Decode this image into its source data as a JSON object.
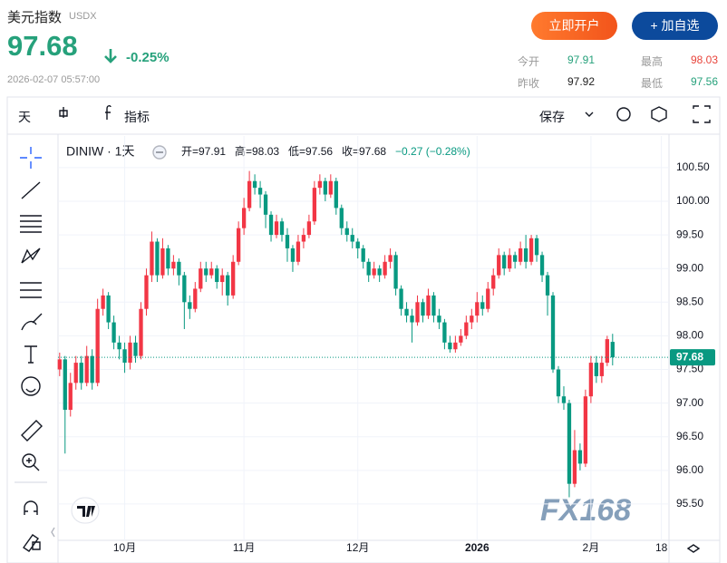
{
  "header": {
    "title": "美元指数",
    "code": "USDX",
    "price": "97.68",
    "change": "-0.25%",
    "time": "2026-02-07 05:57:00"
  },
  "buttons": {
    "open_account": "立即开户",
    "add_watch": "+ 加自选"
  },
  "stats": [
    {
      "label": "今开",
      "value": "97.91",
      "color": "#26a17b"
    },
    {
      "label": "最高",
      "value": "98.03",
      "color": "#e8443b"
    },
    {
      "label": "昨收",
      "value": "97.92",
      "color": "#222"
    },
    {
      "label": "最低",
      "value": "97.56",
      "color": "#26a17b"
    }
  ],
  "toolbar": {
    "interval": "天",
    "indicators": "指标",
    "save": "保存"
  },
  "chart_data": {
    "type": "candlestick",
    "symbol": "DINIW · 1天",
    "legend": {
      "open": "开=97.91",
      "high": "高=98.03",
      "low": "低=97.56",
      "close": "收=97.68",
      "change": "−0.27 (−0.28%)"
    },
    "up_color": "#f23645",
    "down_color": "#089981",
    "grid": true,
    "last_price": 97.68,
    "watermark": "FX168",
    "ylim": [
      94.96,
      100.97
    ],
    "yticks": [
      {
        "value": 100.5,
        "label": "100.50"
      },
      {
        "value": 100,
        "label": "100.00"
      },
      {
        "value": 99.5,
        "label": "99.50"
      },
      {
        "value": 99,
        "label": "99.00"
      },
      {
        "value": 98.5,
        "label": "98.50"
      },
      {
        "value": 98,
        "label": "98.00"
      },
      {
        "value": 97.5,
        "label": "97.50"
      },
      {
        "value": 97,
        "label": "97.00"
      },
      {
        "value": 96.5,
        "label": "96.50"
      },
      {
        "value": 96,
        "label": "96.00"
      },
      {
        "value": 95.5,
        "label": "95.50"
      }
    ],
    "xlim": [
      -0.3,
      112.4
    ],
    "xticks": [
      {
        "value": 12,
        "label": "10月"
      },
      {
        "value": 34,
        "label": "11月"
      },
      {
        "value": 55,
        "label": "12月"
      },
      {
        "value": 77,
        "label": "2026"
      },
      {
        "value": 98,
        "label": "2月"
      },
      {
        "value": 111,
        "label": "18"
      }
    ],
    "candles": [
      [
        97.5,
        97.75,
        97.4,
        97.65
      ],
      [
        97.65,
        97.7,
        96.25,
        96.9
      ],
      [
        96.9,
        97.45,
        96.8,
        97.3
      ],
      [
        97.3,
        97.7,
        97.2,
        97.6
      ],
      [
        97.6,
        97.7,
        97.2,
        97.3
      ],
      [
        97.3,
        97.85,
        97.25,
        97.7
      ],
      [
        97.7,
        97.8,
        97.2,
        97.3
      ],
      [
        97.3,
        98.55,
        97.25,
        98.4
      ],
      [
        98.4,
        98.7,
        98.3,
        98.6
      ],
      [
        98.6,
        98.65,
        98.1,
        98.2
      ],
      [
        98.2,
        98.3,
        97.8,
        97.9
      ],
      [
        97.9,
        98.0,
        97.65,
        97.8
      ],
      [
        97.8,
        97.9,
        97.45,
        97.6
      ],
      [
        97.6,
        98.0,
        97.5,
        97.9
      ],
      [
        97.9,
        98.0,
        97.6,
        97.7
      ],
      [
        97.7,
        98.5,
        97.65,
        98.4
      ],
      [
        98.4,
        99.0,
        98.3,
        98.9
      ],
      [
        98.9,
        99.55,
        98.8,
        99.4
      ],
      [
        99.4,
        99.45,
        98.8,
        98.9
      ],
      [
        98.9,
        99.45,
        98.85,
        99.3
      ],
      [
        99.3,
        99.35,
        98.9,
        99.0
      ],
      [
        99.0,
        99.2,
        98.9,
        99.1
      ],
      [
        99.1,
        99.15,
        98.75,
        98.9
      ],
      [
        98.9,
        98.95,
        98.1,
        98.5
      ],
      [
        98.5,
        98.6,
        98.25,
        98.4
      ],
      [
        98.4,
        98.8,
        98.35,
        98.7
      ],
      [
        98.7,
        99.1,
        98.65,
        99.0
      ],
      [
        99.0,
        99.1,
        98.8,
        98.9
      ],
      [
        98.9,
        99.1,
        98.85,
        99.0
      ],
      [
        99.0,
        99.05,
        98.7,
        98.8
      ],
      [
        98.8,
        99.0,
        98.6,
        98.9
      ],
      [
        98.9,
        98.95,
        98.45,
        98.6
      ],
      [
        98.6,
        99.2,
        98.55,
        99.1
      ],
      [
        99.1,
        99.7,
        99.05,
        99.6
      ],
      [
        99.6,
        100.05,
        99.5,
        99.9
      ],
      [
        99.9,
        100.45,
        99.85,
        100.3
      ],
      [
        100.3,
        100.4,
        100.1,
        100.2
      ],
      [
        100.2,
        100.3,
        99.9,
        100.1
      ],
      [
        100.1,
        100.15,
        99.6,
        99.8
      ],
      [
        99.8,
        99.85,
        99.4,
        99.5
      ],
      [
        99.5,
        99.8,
        99.45,
        99.7
      ],
      [
        99.7,
        99.75,
        99.4,
        99.5
      ],
      [
        99.5,
        99.6,
        99.1,
        99.3
      ],
      [
        99.3,
        99.35,
        98.95,
        99.1
      ],
      [
        99.1,
        99.5,
        99.05,
        99.4
      ],
      [
        99.4,
        99.6,
        99.3,
        99.5
      ],
      [
        99.5,
        99.8,
        99.45,
        99.7
      ],
      [
        99.7,
        100.3,
        99.65,
        100.2
      ],
      [
        100.2,
        100.4,
        100.1,
        100.3
      ],
      [
        100.3,
        100.35,
        100.0,
        100.1
      ],
      [
        100.1,
        100.4,
        100.05,
        100.3
      ],
      [
        100.3,
        100.35,
        99.8,
        99.9
      ],
      [
        99.9,
        99.95,
        99.5,
        99.6
      ],
      [
        99.6,
        99.7,
        99.4,
        99.5
      ],
      [
        99.5,
        99.6,
        99.3,
        99.4
      ],
      [
        99.4,
        99.45,
        99.15,
        99.3
      ],
      [
        99.3,
        99.35,
        99.0,
        99.1
      ],
      [
        99.1,
        99.15,
        98.8,
        98.9
      ],
      [
        98.9,
        99.1,
        98.85,
        99.0
      ],
      [
        99.0,
        99.05,
        98.8,
        98.9
      ],
      [
        98.9,
        99.2,
        98.85,
        99.1
      ],
      [
        99.1,
        99.3,
        99.0,
        99.2
      ],
      [
        99.2,
        99.25,
        98.6,
        98.7
      ],
      [
        98.7,
        98.75,
        98.3,
        98.4
      ],
      [
        98.4,
        98.5,
        98.2,
        98.3
      ],
      [
        98.3,
        98.4,
        97.9,
        98.2
      ],
      [
        98.2,
        98.6,
        98.15,
        98.5
      ],
      [
        98.5,
        98.55,
        98.2,
        98.3
      ],
      [
        98.3,
        98.7,
        98.25,
        98.6
      ],
      [
        98.6,
        98.65,
        98.2,
        98.3
      ],
      [
        98.3,
        98.4,
        98.1,
        98.2
      ],
      [
        98.2,
        98.25,
        97.8,
        97.9
      ],
      [
        97.9,
        98.0,
        97.75,
        97.8
      ],
      [
        97.8,
        98.0,
        97.75,
        97.9
      ],
      [
        97.9,
        98.1,
        97.85,
        98.0
      ],
      [
        98.0,
        98.3,
        97.95,
        98.2
      ],
      [
        98.2,
        98.4,
        98.1,
        98.3
      ],
      [
        98.3,
        98.65,
        98.2,
        98.5
      ],
      [
        98.5,
        98.6,
        98.3,
        98.4
      ],
      [
        98.4,
        98.8,
        98.35,
        98.7
      ],
      [
        98.7,
        99.0,
        98.6,
        98.9
      ],
      [
        98.9,
        99.3,
        98.85,
        99.2
      ],
      [
        99.2,
        99.25,
        98.9,
        99.0
      ],
      [
        99.0,
        99.3,
        98.95,
        99.2
      ],
      [
        99.2,
        99.25,
        99.0,
        99.1
      ],
      [
        99.1,
        99.4,
        99.05,
        99.3
      ],
      [
        99.3,
        99.5,
        99.0,
        99.1
      ],
      [
        99.1,
        99.5,
        99.05,
        99.45
      ],
      [
        99.45,
        99.5,
        99.1,
        99.2
      ],
      [
        99.2,
        99.25,
        98.8,
        98.9
      ],
      [
        98.9,
        98.95,
        98.3,
        98.6
      ],
      [
        98.6,
        98.65,
        97.45,
        97.5
      ],
      [
        97.5,
        97.55,
        97.0,
        97.1
      ],
      [
        97.1,
        97.25,
        96.9,
        97.0
      ],
      [
        97.0,
        97.05,
        95.6,
        95.8
      ],
      [
        95.8,
        96.6,
        95.75,
        96.3
      ],
      [
        96.3,
        96.4,
        96.0,
        96.1
      ],
      [
        96.1,
        97.2,
        96.05,
        97.1
      ],
      [
        97.1,
        97.7,
        97.0,
        97.6
      ],
      [
        97.6,
        97.7,
        97.3,
        97.4
      ],
      [
        97.4,
        97.7,
        97.3,
        97.6
      ],
      [
        97.6,
        98.0,
        97.55,
        97.95
      ],
      [
        97.91,
        98.03,
        97.56,
        97.68
      ]
    ]
  }
}
